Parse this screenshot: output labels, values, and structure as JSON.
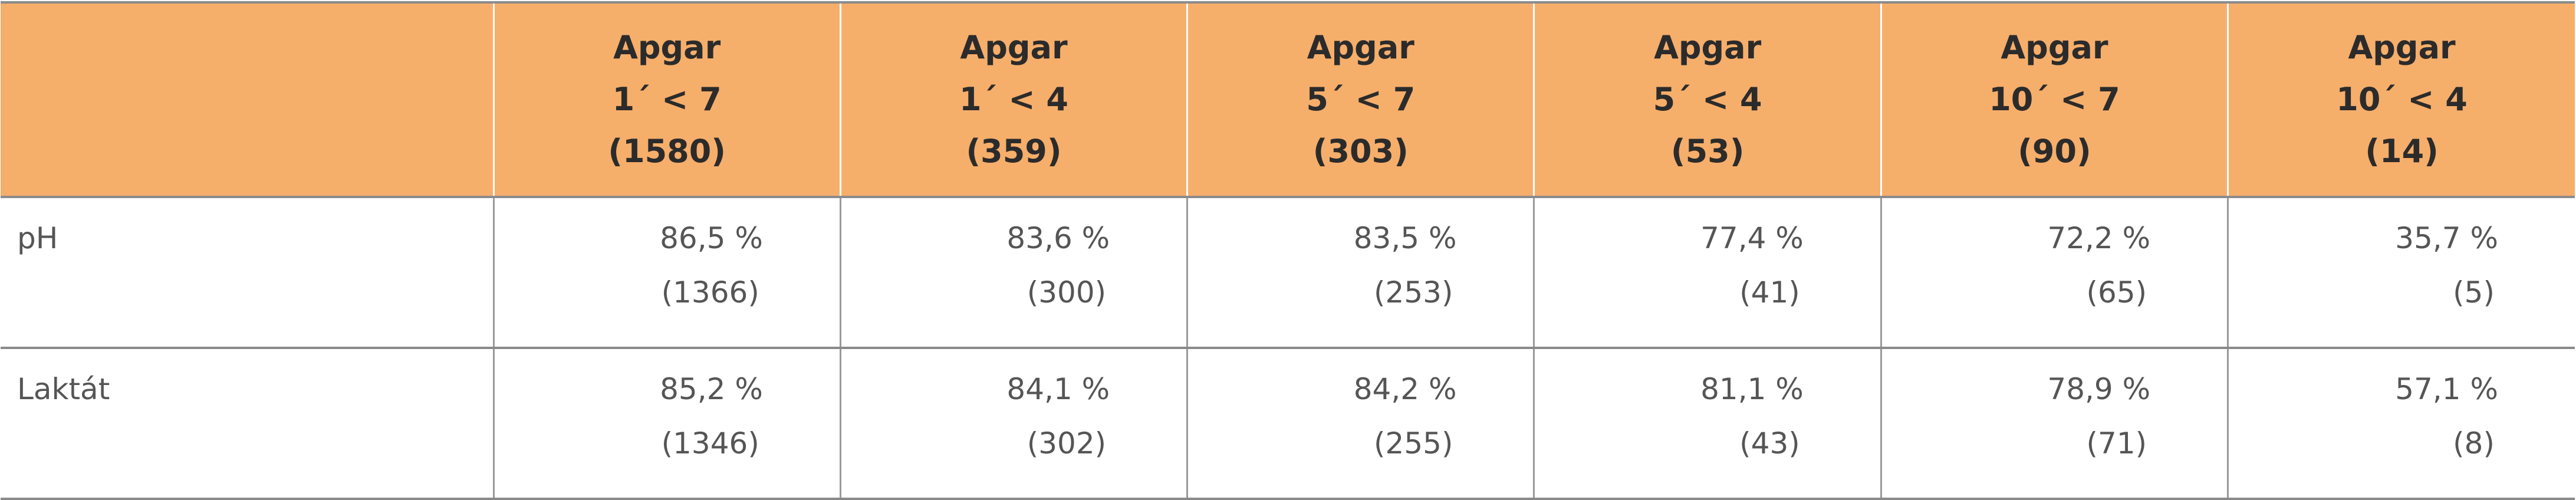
{
  "table": {
    "header": [
      [
        "Apgar",
        "1´ < 7",
        "(1580)"
      ],
      [
        "Apgar",
        "1´ < 4",
        "(359)"
      ],
      [
        "Apgar",
        "5´ < 7",
        "(303)"
      ],
      [
        "Apgar",
        "5´ < 4",
        "(53)"
      ],
      [
        "Apgar",
        "10´ < 7",
        "(90)"
      ],
      [
        "Apgar",
        "10´ < 4",
        "(14)"
      ]
    ],
    "rows": [
      {
        "label": "pH",
        "cells": [
          [
            "86,5 %",
            "(1366)"
          ],
          [
            "83,6 %",
            "(300)"
          ],
          [
            "83,5 %",
            "(253)"
          ],
          [
            "77,4 %",
            "(41)"
          ],
          [
            "72,2 %",
            "(65)"
          ],
          [
            "35,7 %",
            "(5)"
          ]
        ]
      },
      {
        "label": "Laktát",
        "cells": [
          [
            "85,2 %",
            "(1346)"
          ],
          [
            "84,1 %",
            "(302)"
          ],
          [
            "84,2 %",
            "(255)"
          ],
          [
            "81,1 %",
            "(43)"
          ],
          [
            "78,9 %",
            "(71)"
          ],
          [
            "57,1 %",
            "(8)"
          ]
        ]
      }
    ]
  }
}
